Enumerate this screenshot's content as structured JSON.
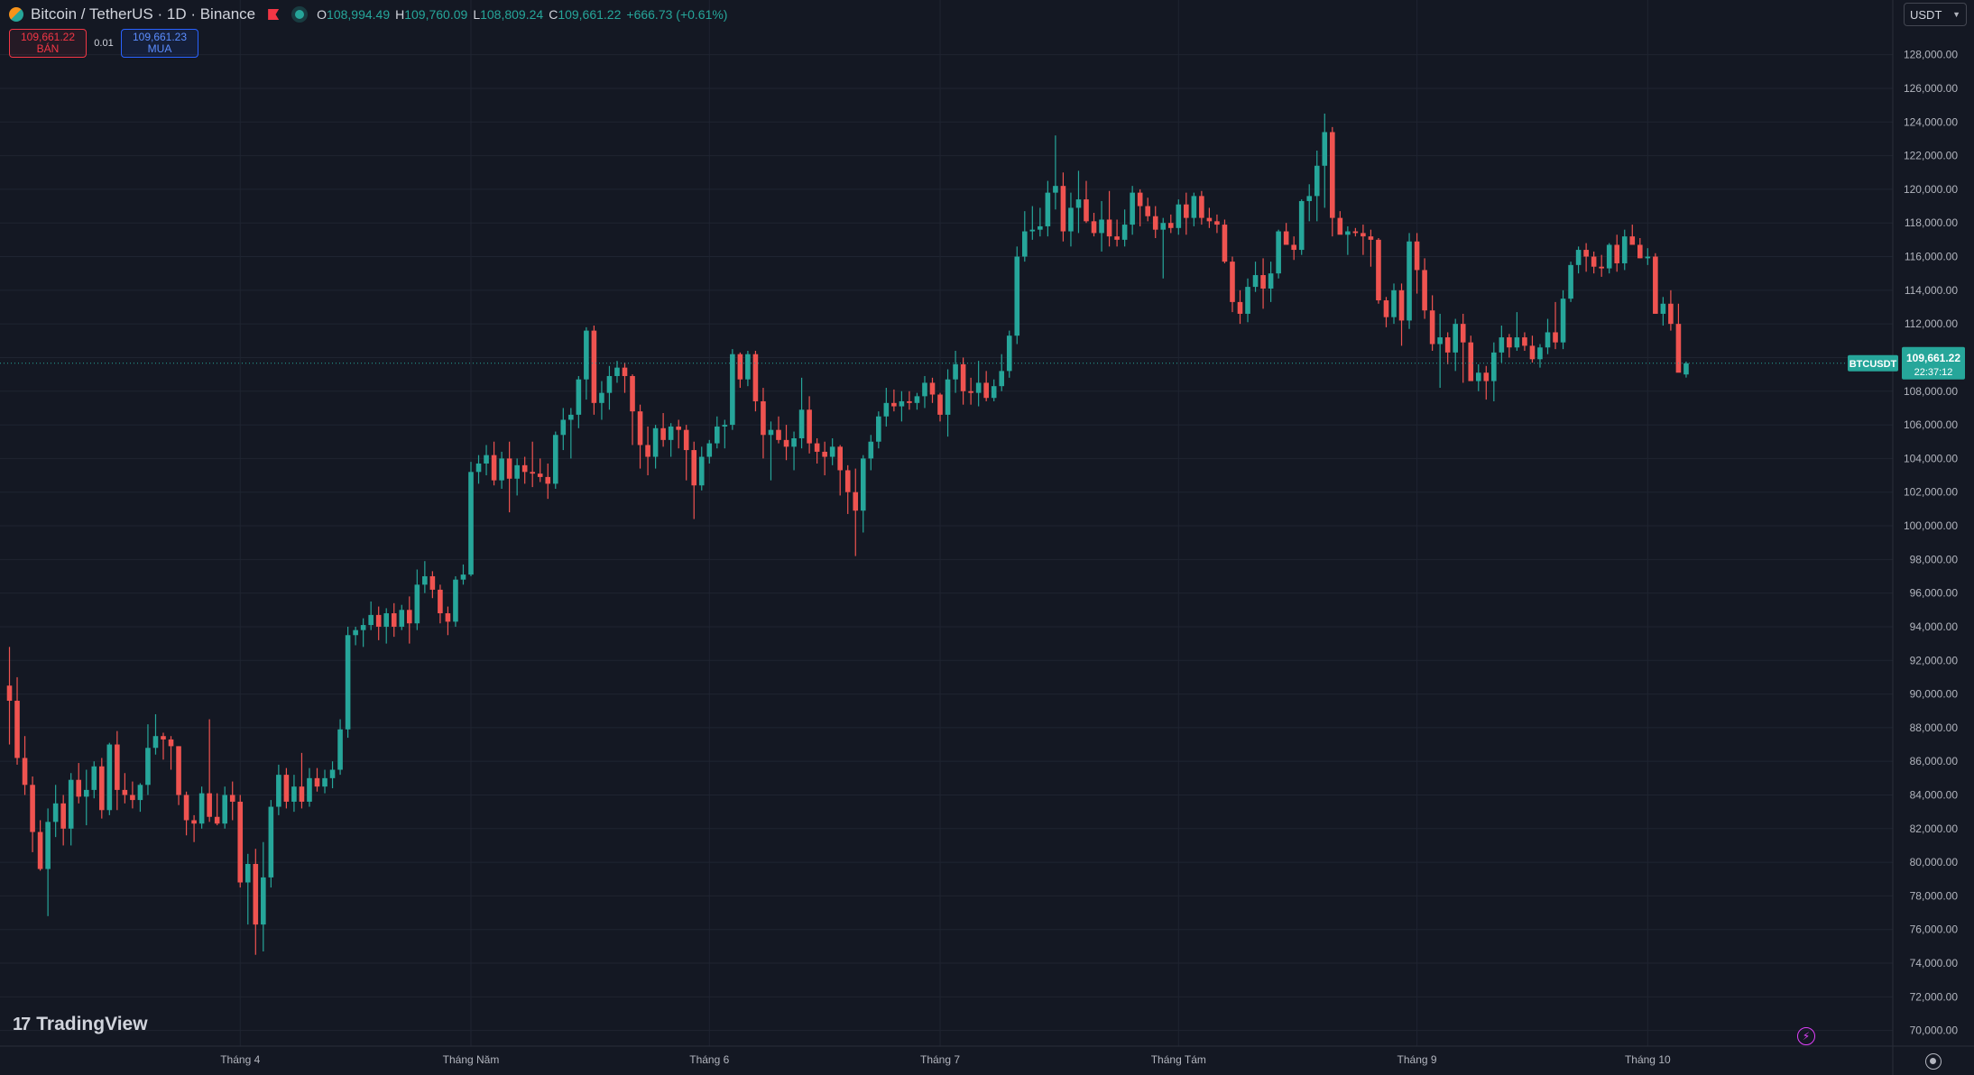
{
  "header": {
    "symbol_title": "Bitcoin / TetherUS · 1D · Binance",
    "ohlc": {
      "o_label": "O",
      "o": "108,994.49",
      "h_label": "H",
      "h": "109,760.09",
      "l_label": "L",
      "l": "108,809.24",
      "c_label": "C",
      "c": "109,661.22",
      "change": "+666.73 (+0.61%)"
    },
    "icons": [
      "bitcoin-icon",
      "flag-icon",
      "status-dot-icon"
    ]
  },
  "trade": {
    "sell_price": "109,661.22",
    "sell_label": "BÁN",
    "spread": "0.01",
    "buy_price": "109,661.23",
    "buy_label": "MUA"
  },
  "currency": "USDT",
  "price_label": {
    "symbol": "BTCUSDT",
    "price": "109,661.22",
    "countdown": "22:37:12"
  },
  "branding": "TradingView",
  "colors": {
    "background": "#141823",
    "up": "#26a69a",
    "down": "#ef5350",
    "grid": "#1f2431",
    "text": "#b2b5be"
  },
  "chart_data": {
    "type": "candlestick",
    "ylim": [
      69500,
      129000
    ],
    "y_ticks": [
      "128,000.00",
      "126,000.00",
      "124,000.00",
      "122,000.00",
      "120,000.00",
      "118,000.00",
      "116,000.00",
      "114,000.00",
      "112,000.00",
      "110,000.00",
      "108,000.00",
      "106,000.00",
      "104,000.00",
      "102,000.00",
      "100,000.00",
      "98,000.00",
      "96,000.00",
      "94,000.00",
      "92,000.00",
      "90,000.00",
      "88,000.00",
      "86,000.00",
      "84,000.00",
      "82,000.00",
      "80,000.00",
      "78,000.00",
      "76,000.00",
      "74,000.00",
      "72,000.00",
      "70,000.00"
    ],
    "x_ticks": [
      {
        "label": "Tháng 4",
        "index": 30
      },
      {
        "label": "Tháng Năm",
        "index": 60
      },
      {
        "label": "Tháng 6",
        "index": 91
      },
      {
        "label": "Tháng 7",
        "index": 121
      },
      {
        "label": "Tháng Tám",
        "index": 152
      },
      {
        "label": "Tháng 9",
        "index": 183
      },
      {
        "label": "Tháng 10",
        "index": 213
      }
    ],
    "candles": [
      [
        90500,
        92800,
        87000,
        89600
      ],
      [
        89600,
        91000,
        85800,
        86200
      ],
      [
        86200,
        87500,
        84000,
        84600
      ],
      [
        84600,
        85100,
        80600,
        81800
      ],
      [
        81800,
        82500,
        79500,
        79600
      ],
      [
        79600,
        83200,
        76800,
        82400
      ],
      [
        82400,
        84600,
        81500,
        83500
      ],
      [
        83500,
        84000,
        81000,
        82000
      ],
      [
        82000,
        85300,
        81000,
        84900
      ],
      [
        84900,
        85900,
        83500,
        83900
      ],
      [
        83900,
        85500,
        82200,
        84300
      ],
      [
        84300,
        86000,
        83800,
        85700
      ],
      [
        85700,
        86200,
        82600,
        83100
      ],
      [
        83100,
        87100,
        82800,
        87000
      ],
      [
        87000,
        87800,
        83100,
        84300
      ],
      [
        84300,
        85300,
        83500,
        84000
      ],
      [
        84000,
        84800,
        83200,
        83700
      ],
      [
        83700,
        84700,
        83000,
        84600
      ],
      [
        84600,
        88200,
        84000,
        86800
      ],
      [
        86800,
        88800,
        86400,
        87500
      ],
      [
        87500,
        87700,
        86100,
        87300
      ],
      [
        87300,
        87500,
        85500,
        86900
      ],
      [
        86900,
        86900,
        83400,
        84000
      ],
      [
        84000,
        84200,
        81600,
        82500
      ],
      [
        82500,
        82800,
        81200,
        82300
      ],
      [
        82300,
        84500,
        82000,
        84100
      ],
      [
        84100,
        88500,
        82400,
        82700
      ],
      [
        82700,
        84100,
        82200,
        82300
      ],
      [
        82300,
        84500,
        82000,
        84000
      ],
      [
        84000,
        84800,
        82500,
        83600
      ],
      [
        83600,
        84000,
        78500,
        78800
      ],
      [
        78800,
        80500,
        76300,
        79900
      ],
      [
        79900,
        80800,
        74500,
        76300
      ],
      [
        76300,
        81200,
        74700,
        79100
      ],
      [
        79100,
        83700,
        78500,
        83300
      ],
      [
        83300,
        85800,
        82800,
        85200
      ],
      [
        85200,
        85600,
        83200,
        83600
      ],
      [
        83600,
        85200,
        83000,
        84500
      ],
      [
        84500,
        86500,
        83200,
        83600
      ],
      [
        83600,
        85600,
        83300,
        85000
      ],
      [
        85000,
        85600,
        84200,
        84500
      ],
      [
        84500,
        85500,
        84100,
        85000
      ],
      [
        85000,
        86000,
        84400,
        85500
      ],
      [
        85500,
        88500,
        85200,
        87900
      ],
      [
        87900,
        94000,
        87400,
        93500
      ],
      [
        93500,
        94000,
        92900,
        93800
      ],
      [
        93800,
        94500,
        92800,
        94100
      ],
      [
        94100,
        95500,
        93800,
        94700
      ],
      [
        94700,
        95200,
        93200,
        94000
      ],
      [
        94000,
        95100,
        93000,
        94800
      ],
      [
        94800,
        95400,
        93400,
        94000
      ],
      [
        94000,
        95300,
        93800,
        95000
      ],
      [
        95000,
        95800,
        93000,
        94200
      ],
      [
        94200,
        97400,
        93800,
        96500
      ],
      [
        96500,
        97900,
        96000,
        97000
      ],
      [
        97000,
        97300,
        95700,
        96200
      ],
      [
        96200,
        96500,
        94200,
        94800
      ],
      [
        94800,
        95200,
        93500,
        94300
      ],
      [
        94300,
        97000,
        94000,
        96800
      ],
      [
        96800,
        97700,
        96500,
        97100
      ],
      [
        97100,
        103800,
        97000,
        103200
      ],
      [
        103200,
        104200,
        102500,
        103700
      ],
      [
        103700,
        104800,
        103000,
        104200
      ],
      [
        104200,
        105000,
        102400,
        102700
      ],
      [
        102700,
        104400,
        102200,
        104000
      ],
      [
        104000,
        105000,
        100800,
        102800
      ],
      [
        102800,
        104000,
        101800,
        103600
      ],
      [
        103600,
        104100,
        102500,
        103200
      ],
      [
        103200,
        105000,
        102300,
        103100
      ],
      [
        103100,
        104000,
        102600,
        102900
      ],
      [
        102900,
        103700,
        101600,
        102500
      ],
      [
        102500,
        105600,
        102200,
        105400
      ],
      [
        105400,
        107000,
        104500,
        106300
      ],
      [
        106300,
        107000,
        104000,
        106600
      ],
      [
        106600,
        108900,
        105800,
        108700
      ],
      [
        108700,
        111800,
        107500,
        111600
      ],
      [
        111600,
        111900,
        106600,
        107300
      ],
      [
        107300,
        108600,
        106300,
        107900
      ],
      [
        107900,
        109500,
        106900,
        108900
      ],
      [
        108900,
        109800,
        108500,
        109400
      ],
      [
        109400,
        109700,
        107900,
        108900
      ],
      [
        108900,
        109000,
        104800,
        106800
      ],
      [
        106800,
        107200,
        103400,
        104800
      ],
      [
        104800,
        105900,
        103000,
        104100
      ],
      [
        104100,
        106000,
        103400,
        105800
      ],
      [
        105800,
        106700,
        104700,
        105100
      ],
      [
        105100,
        106100,
        104100,
        105900
      ],
      [
        105900,
        106300,
        104600,
        105700
      ],
      [
        105700,
        106000,
        102700,
        104500
      ],
      [
        104500,
        105000,
        100400,
        102400
      ],
      [
        102400,
        104700,
        102100,
        104100
      ],
      [
        104100,
        105100,
        103700,
        104900
      ],
      [
        104900,
        106500,
        104600,
        105900
      ],
      [
        105900,
        106300,
        104600,
        106000
      ],
      [
        106000,
        110500,
        105700,
        110200
      ],
      [
        110200,
        110300,
        108200,
        108700
      ],
      [
        108700,
        110400,
        108300,
        110200
      ],
      [
        110200,
        110400,
        106800,
        107400
      ],
      [
        107400,
        108200,
        104000,
        105400
      ],
      [
        105400,
        106200,
        102700,
        105700
      ],
      [
        105700,
        106500,
        104900,
        105100
      ],
      [
        105100,
        106000,
        103900,
        104700
      ],
      [
        104700,
        105600,
        103300,
        105200
      ],
      [
        105200,
        108800,
        104600,
        106900
      ],
      [
        106900,
        107700,
        104300,
        104900
      ],
      [
        104900,
        105200,
        103700,
        104400
      ],
      [
        104400,
        105000,
        103000,
        104100
      ],
      [
        104100,
        105200,
        103600,
        104700
      ],
      [
        104700,
        104800,
        101800,
        103300
      ],
      [
        103300,
        103600,
        100700,
        102000
      ],
      [
        102000,
        103400,
        98200,
        100900
      ],
      [
        100900,
        104200,
        99600,
        104000
      ],
      [
        104000,
        105400,
        103300,
        105000
      ],
      [
        105000,
        106800,
        104600,
        106500
      ],
      [
        106500,
        108200,
        105900,
        107300
      ],
      [
        107300,
        108100,
        106800,
        107100
      ],
      [
        107100,
        108000,
        106200,
        107400
      ],
      [
        107400,
        108000,
        106900,
        107300
      ],
      [
        107300,
        107900,
        106900,
        107700
      ],
      [
        107700,
        108900,
        107000,
        108500
      ],
      [
        108500,
        108800,
        107300,
        107800
      ],
      [
        107800,
        107900,
        106200,
        106600
      ],
      [
        106600,
        109300,
        105300,
        108700
      ],
      [
        108700,
        110400,
        107900,
        109600
      ],
      [
        109600,
        110000,
        107200,
        108000
      ],
      [
        108000,
        108800,
        107200,
        107900
      ],
      [
        107900,
        109800,
        107100,
        108500
      ],
      [
        108500,
        109200,
        107400,
        107600
      ],
      [
        107600,
        108700,
        107400,
        108300
      ],
      [
        108300,
        110200,
        108000,
        109200
      ],
      [
        109200,
        111600,
        108800,
        111300
      ],
      [
        111300,
        116600,
        110800,
        116000
      ],
      [
        116000,
        118700,
        115700,
        117500
      ],
      [
        117500,
        119000,
        117000,
        117600
      ],
      [
        117600,
        118900,
        117200,
        117800
      ],
      [
        117800,
        120500,
        117200,
        119800
      ],
      [
        119800,
        123200,
        118800,
        120200
      ],
      [
        120200,
        121000,
        116900,
        117500
      ],
      [
        117500,
        119800,
        116600,
        118900
      ],
      [
        118900,
        121100,
        117400,
        119400
      ],
      [
        119400,
        120500,
        118000,
        118100
      ],
      [
        118100,
        118600,
        117200,
        117400
      ],
      [
        117400,
        119300,
        116300,
        118200
      ],
      [
        118200,
        119900,
        116600,
        117200
      ],
      [
        117200,
        118200,
        116600,
        117000
      ],
      [
        117000,
        118800,
        116600,
        117900
      ],
      [
        117900,
        120200,
        117300,
        119800
      ],
      [
        119800,
        120000,
        117800,
        119000
      ],
      [
        119000,
        119500,
        118100,
        118400
      ],
      [
        118400,
        119000,
        117100,
        117600
      ],
      [
        117600,
        118300,
        114700,
        118000
      ],
      [
        118000,
        118500,
        117400,
        117700
      ],
      [
        117700,
        119400,
        117300,
        119100
      ],
      [
        119100,
        119800,
        117300,
        118300
      ],
      [
        118300,
        119800,
        117800,
        119600
      ],
      [
        119600,
        119900,
        117900,
        118300
      ],
      [
        118300,
        118900,
        117700,
        118100
      ],
      [
        118100,
        118500,
        117400,
        117900
      ],
      [
        117900,
        118200,
        115600,
        115700
      ],
      [
        115700,
        116000,
        112700,
        113300
      ],
      [
        113300,
        114000,
        112000,
        112600
      ],
      [
        112600,
        114700,
        112100,
        114200
      ],
      [
        114200,
        115700,
        113900,
        114900
      ],
      [
        114900,
        115900,
        112900,
        114100
      ],
      [
        114100,
        115700,
        113300,
        115000
      ],
      [
        115000,
        117600,
        114700,
        117500
      ],
      [
        117500,
        118000,
        116800,
        116700
      ],
      [
        116700,
        117200,
        115800,
        116400
      ],
      [
        116400,
        119400,
        116100,
        119300
      ],
      [
        119300,
        120300,
        118100,
        119600
      ],
      [
        119600,
        122300,
        118100,
        121400
      ],
      [
        121400,
        124500,
        118900,
        123400
      ],
      [
        123400,
        123700,
        117200,
        118300
      ],
      [
        118300,
        118700,
        117500,
        117300
      ],
      [
        117300,
        117800,
        116100,
        117500
      ],
      [
        117500,
        117700,
        117200,
        117400
      ],
      [
        117400,
        117900,
        116100,
        117200
      ],
      [
        117200,
        117600,
        115400,
        117000
      ],
      [
        117000,
        117100,
        113200,
        113400
      ],
      [
        113400,
        113600,
        111800,
        112400
      ],
      [
        112400,
        114400,
        112000,
        114000
      ],
      [
        114000,
        114400,
        110700,
        112200
      ],
      [
        112200,
        117400,
        111700,
        116900
      ],
      [
        116900,
        117400,
        113800,
        115200
      ],
      [
        115200,
        115900,
        112300,
        112800
      ],
      [
        112800,
        113700,
        110400,
        110800
      ],
      [
        110800,
        112600,
        108200,
        111200
      ],
      [
        111200,
        111500,
        109600,
        110300
      ],
      [
        110300,
        112300,
        109200,
        112000
      ],
      [
        112000,
        112600,
        108500,
        110900
      ],
      [
        110900,
        111300,
        108900,
        108600
      ],
      [
        108600,
        109600,
        108000,
        109100
      ],
      [
        109100,
        109500,
        107500,
        108600
      ],
      [
        108600,
        110900,
        107400,
        110300
      ],
      [
        110300,
        111900,
        109700,
        111200
      ],
      [
        111200,
        111400,
        110000,
        110600
      ],
      [
        110600,
        112700,
        110400,
        111200
      ],
      [
        111200,
        111500,
        110400,
        110700
      ],
      [
        110700,
        111300,
        109700,
        109900
      ],
      [
        109900,
        110800,
        109400,
        110600
      ],
      [
        110600,
        112300,
        110200,
        111500
      ],
      [
        111500,
        113300,
        110500,
        110900
      ],
      [
        110900,
        114000,
        110500,
        113500
      ],
      [
        113500,
        115700,
        113300,
        115500
      ],
      [
        115500,
        116600,
        115000,
        116400
      ],
      [
        116400,
        116800,
        115100,
        116000
      ],
      [
        116000,
        116300,
        115000,
        115400
      ],
      [
        115400,
        116100,
        114800,
        115300
      ],
      [
        115300,
        116800,
        115000,
        116700
      ],
      [
        116700,
        117300,
        115100,
        115600
      ],
      [
        115600,
        117600,
        115200,
        117200
      ],
      [
        117200,
        117900,
        116800,
        116700
      ],
      [
        116700,
        117100,
        115900,
        115900
      ],
      [
        115900,
        116500,
        115500,
        116000
      ],
      [
        116000,
        116200,
        112600,
        112600
      ],
      [
        112600,
        113600,
        111900,
        113200
      ],
      [
        113200,
        114000,
        111600,
        112000
      ],
      [
        112000,
        113200,
        109400,
        109100
      ],
      [
        108994.49,
        109760.09,
        108809.24,
        109661.22
      ]
    ]
  }
}
